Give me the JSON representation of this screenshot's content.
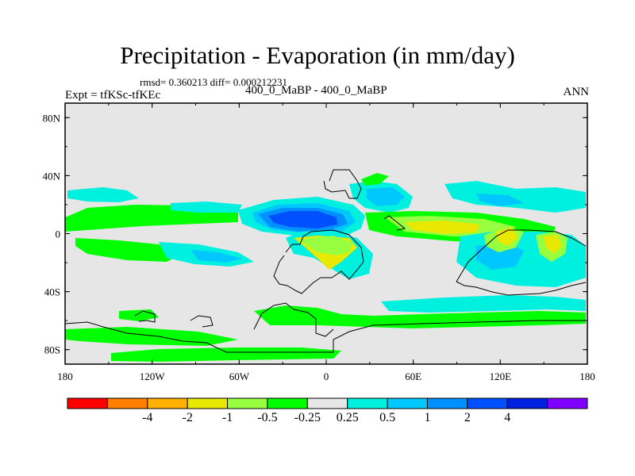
{
  "title": "Precipitation - Evaporation (in mm/day)",
  "stats": "rmsd= 0.360213 diff= 0.000212231",
  "experiment": "Expt = tfKSc-tfKEc",
  "subtitle": "400_0_MaBP - 400_0_MaBP",
  "season": "ANN",
  "map": {
    "lat_labels": [
      "80N",
      "40N",
      "0",
      "40S",
      "80S"
    ],
    "lon_labels": [
      "180",
      "120W",
      "60W",
      "0",
      "60E",
      "120E",
      "180"
    ],
    "background_color": "#e6e6e6"
  },
  "colorbar": {
    "colors": [
      "#ff0000",
      "#ff8000",
      "#ffb000",
      "#e8e800",
      "#98ff40",
      "#00ff00",
      "#e6e6e6",
      "#00f0e0",
      "#00c8ff",
      "#0090ff",
      "#0050ff",
      "#0020e0",
      "#8000ff"
    ],
    "labels": [
      "-4",
      "-2",
      "-1",
      "-0.5",
      "-0.25",
      "0.25",
      "0.5",
      "1",
      "2",
      "4"
    ]
  }
}
